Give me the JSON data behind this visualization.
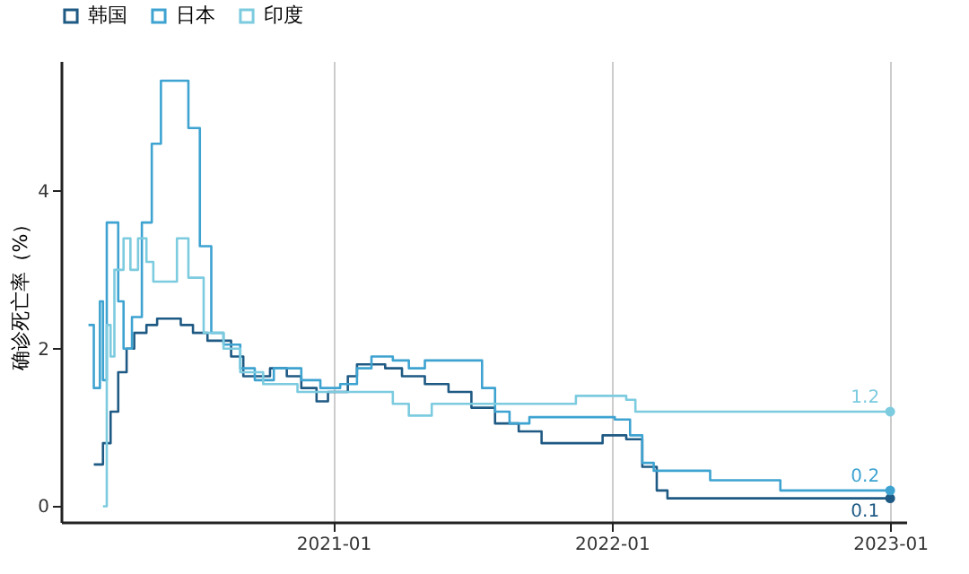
{
  "chart_data": {
    "type": "step",
    "ylabel": "确诊死亡率（%）",
    "legend": "top",
    "grid": "x",
    "xlim": [
      "2020-01-10",
      "2023-01-22"
    ],
    "xticks": [
      "2021-01",
      "2022-01",
      "2023-01"
    ],
    "ylim": [
      -0.2,
      5.65
    ],
    "yticks": [
      0,
      2,
      4
    ],
    "series": [
      {
        "name": "韩国",
        "color": "#1f5a84",
        "x": [
          "2020-02-22",
          "2020-03-05",
          "2020-03-15",
          "2020-03-25",
          "2020-04-05",
          "2020-04-15",
          "2020-05-01",
          "2020-05-15",
          "2020-06-15",
          "2020-07-01",
          "2020-07-20",
          "2020-08-20",
          "2020-09-05",
          "2020-10-10",
          "2020-11-01",
          "2020-11-20",
          "2020-12-10",
          "2020-12-25",
          "2021-01-20",
          "2021-02-01",
          "2021-03-10",
          "2021-04-01",
          "2021-05-01",
          "2021-06-01",
          "2021-07-01",
          "2021-08-01",
          "2021-09-01",
          "2021-10-01",
          "2021-12-20",
          "2022-01-20",
          "2022-02-10",
          "2022-03-01",
          "2022-03-15",
          "2023-01-01"
        ],
        "values": [
          0.53,
          0.8,
          1.2,
          1.7,
          2.0,
          2.2,
          2.3,
          2.38,
          2.3,
          2.2,
          2.1,
          1.9,
          1.65,
          1.75,
          1.65,
          1.5,
          1.33,
          1.45,
          1.65,
          1.8,
          1.75,
          1.65,
          1.55,
          1.45,
          1.25,
          1.05,
          0.95,
          0.8,
          0.9,
          0.85,
          0.5,
          0.2,
          0.1,
          0.1
        ],
        "value_labels": [
          null,
          null,
          null,
          null,
          null,
          null,
          null,
          null,
          null,
          null,
          null,
          null,
          null,
          null,
          null,
          null,
          null,
          null,
          null,
          null,
          null,
          null,
          null,
          null,
          null,
          null,
          null,
          null,
          null,
          null,
          null,
          null,
          null,
          "0.1"
        ]
      },
      {
        "name": "日本",
        "color": "#3ea3d1",
        "x": [
          "2020-02-15",
          "2020-02-22",
          "2020-03-01",
          "2020-03-05",
          "2020-03-10",
          "2020-03-18",
          "2020-03-25",
          "2020-04-01",
          "2020-04-12",
          "2020-04-25",
          "2020-05-08",
          "2020-05-20",
          "2020-06-15",
          "2020-06-25",
          "2020-07-10",
          "2020-07-25",
          "2020-08-10",
          "2020-09-01",
          "2020-09-20",
          "2020-10-15",
          "2020-11-20",
          "2020-12-15",
          "2021-01-10",
          "2021-02-01",
          "2021-02-20",
          "2021-03-20",
          "2021-04-10",
          "2021-05-01",
          "2021-06-15",
          "2021-07-15",
          "2021-08-01",
          "2021-08-20",
          "2021-09-15",
          "2022-01-05",
          "2022-01-25",
          "2022-02-10",
          "2022-02-25",
          "2022-05-10",
          "2022-08-10",
          "2023-01-01"
        ],
        "values": [
          2.3,
          1.5,
          2.6,
          1.6,
          3.6,
          3.6,
          2.6,
          2.0,
          2.4,
          3.6,
          4.6,
          5.4,
          5.4,
          4.8,
          3.3,
          2.2,
          2.05,
          1.75,
          1.6,
          1.75,
          1.6,
          1.5,
          1.55,
          1.75,
          1.9,
          1.85,
          1.75,
          1.85,
          1.85,
          1.5,
          1.2,
          1.05,
          1.13,
          1.1,
          0.9,
          0.55,
          0.45,
          0.33,
          0.2,
          0.2
        ],
        "value_labels": [
          null,
          null,
          null,
          null,
          null,
          null,
          null,
          null,
          null,
          null,
          null,
          null,
          null,
          null,
          null,
          null,
          null,
          null,
          null,
          null,
          null,
          null,
          null,
          null,
          null,
          null,
          null,
          null,
          null,
          null,
          null,
          null,
          null,
          null,
          null,
          null,
          null,
          null,
          null,
          "0.2"
        ]
      },
      {
        "name": "印度",
        "color": "#7ccbdf",
        "x": [
          "2020-03-05",
          "2020-03-10",
          "2020-03-15",
          "2020-03-20",
          "2020-04-01",
          "2020-04-10",
          "2020-04-20",
          "2020-05-01",
          "2020-05-10",
          "2020-06-01",
          "2020-06-10",
          "2020-06-25",
          "2020-07-15",
          "2020-08-10",
          "2020-09-01",
          "2020-10-01",
          "2020-11-15",
          "2021-03-01",
          "2021-03-20",
          "2021-04-10",
          "2021-05-10",
          "2021-11-01",
          "2021-11-15",
          "2022-01-20",
          "2022-02-01",
          "2023-01-01"
        ],
        "values": [
          0,
          2.3,
          1.9,
          3.0,
          3.4,
          3.0,
          3.4,
          3.1,
          2.85,
          2.85,
          3.4,
          2.9,
          2.2,
          2.0,
          1.7,
          1.55,
          1.45,
          1.45,
          1.3,
          1.15,
          1.3,
          1.3,
          1.4,
          1.35,
          1.2,
          1.2
        ],
        "value_labels": [
          null,
          null,
          null,
          null,
          null,
          null,
          null,
          null,
          null,
          null,
          null,
          null,
          null,
          null,
          null,
          null,
          null,
          null,
          null,
          null,
          null,
          null,
          null,
          null,
          null,
          "1.2"
        ]
      }
    ]
  }
}
